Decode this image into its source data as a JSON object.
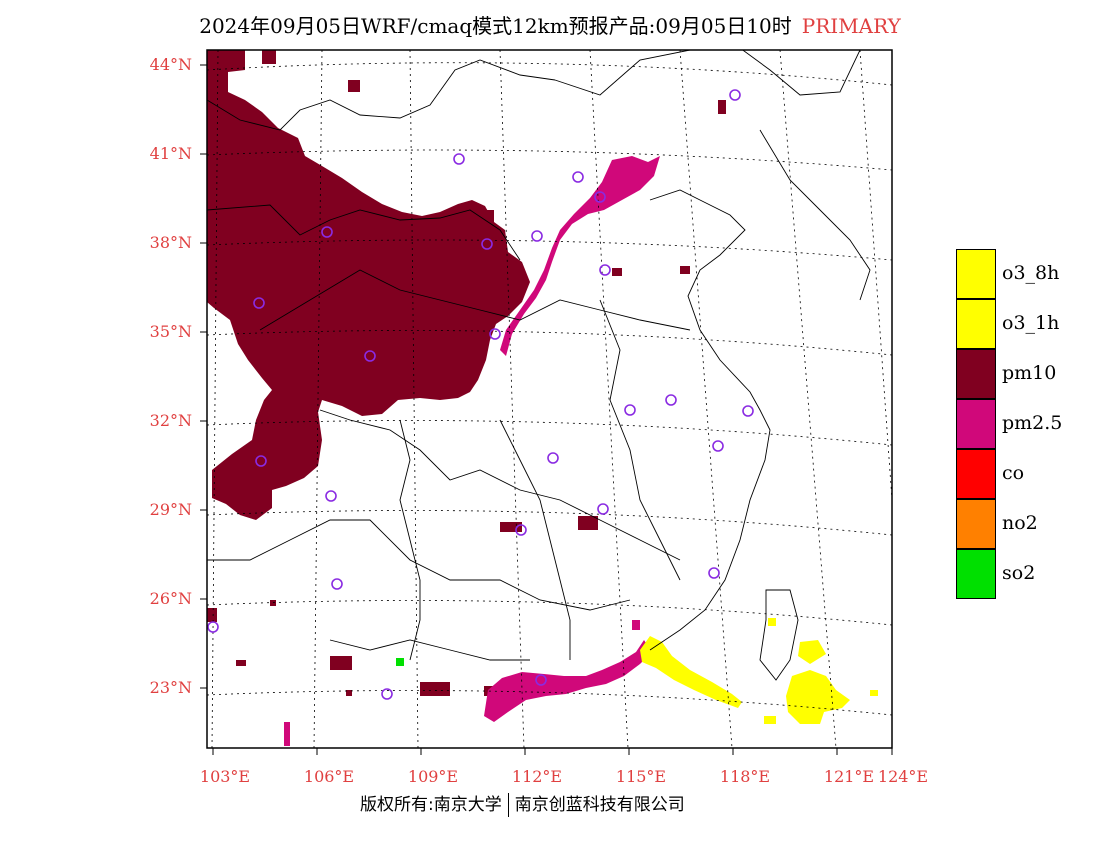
{
  "title": {
    "text": "2024年09月05日WRF/cmaq模式12km预报产品:09月05日10时",
    "tag": "PRIMARY"
  },
  "map": {
    "lat_labels": [
      "44°N",
      "41°N",
      "38°N",
      "35°N",
      "32°N",
      "29°N",
      "26°N",
      "23°N"
    ],
    "lon_labels": [
      "103°E",
      "106°E",
      "109°E",
      "112°E",
      "115°E",
      "118°E",
      "121°E",
      "124°E"
    ],
    "label_color": "#e04040",
    "station_color": "#8a2be2"
  },
  "legend": {
    "items": [
      {
        "label": "o3_8h",
        "color": "#ffff00"
      },
      {
        "label": "o3_1h",
        "color": "#ffff00"
      },
      {
        "label": "pm10",
        "color": "#800020"
      },
      {
        "label": "pm2.5",
        "color": "#d0087a"
      },
      {
        "label": "co",
        "color": "#ff0000"
      },
      {
        "label": "no2",
        "color": "#ff8000"
      },
      {
        "label": "so2",
        "color": "#00e000"
      }
    ]
  },
  "footer": {
    "left": "版权所有:南京大学",
    "right": "南京创蓝科技有限公司"
  }
}
